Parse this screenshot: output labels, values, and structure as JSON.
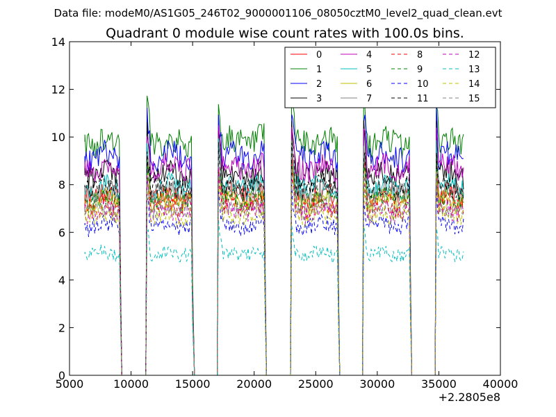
{
  "chart_data": {
    "type": "line",
    "suptitle": "Data file: modeM0/AS1G05_246T02_9000001106_08050cztM0_level2_quad_clean.evt",
    "title": "Quadrant 0 module wise count rates with 100.0s bins.",
    "xlabel": "",
    "ylabel": "",
    "x_offset_label": "+2.2805e8",
    "xlim": [
      5000,
      40000
    ],
    "ylim": [
      0,
      14
    ],
    "x_ticks": [
      5000,
      10000,
      15000,
      20000,
      25000,
      30000,
      35000,
      40000
    ],
    "x_tick_labels": [
      "5000",
      "10000",
      "15000",
      "20000",
      "25000",
      "30000",
      "35000",
      "40000"
    ],
    "y_ticks": [
      0,
      2,
      4,
      6,
      8,
      10,
      12,
      14
    ],
    "y_tick_labels": [
      "0",
      "2",
      "4",
      "6",
      "8",
      "10",
      "12",
      "14"
    ],
    "grid": false,
    "legend_position": "top-right",
    "good_time_intervals": [
      [
        6250,
        9150
      ],
      [
        11300,
        15050
      ],
      [
        17100,
        20900
      ],
      [
        23050,
        26850
      ],
      [
        28900,
        32700
      ],
      [
        34800,
        37000
      ]
    ],
    "series": [
      {
        "name": "0",
        "color": "#ff0000",
        "style": "solid",
        "level": 7.6,
        "spike": 1.6
      },
      {
        "name": "1",
        "color": "#008000",
        "style": "solid",
        "level": 9.8,
        "spike": 2.1
      },
      {
        "name": "2",
        "color": "#0000ff",
        "style": "solid",
        "level": 9.2,
        "spike": 2.0
      },
      {
        "name": "3",
        "color": "#000000",
        "style": "solid",
        "level": 8.4,
        "spike": 1.9
      },
      {
        "name": "4",
        "color": "#bf00bf",
        "style": "solid",
        "level": 8.7,
        "spike": 1.8
      },
      {
        "name": "5",
        "color": "#00bfbf",
        "style": "solid",
        "level": 7.9,
        "spike": 1.7
      },
      {
        "name": "6",
        "color": "#bfbf00",
        "style": "solid",
        "level": 7.3,
        "spike": 1.6
      },
      {
        "name": "7",
        "color": "#808080",
        "style": "solid",
        "level": 7.7,
        "spike": 1.6
      },
      {
        "name": "8",
        "color": "#ff0000",
        "style": "dashed",
        "level": 7.1,
        "spike": 1.5
      },
      {
        "name": "9",
        "color": "#008000",
        "style": "dashed",
        "level": 7.4,
        "spike": 1.6
      },
      {
        "name": "10",
        "color": "#0000ff",
        "style": "dashed",
        "level": 6.3,
        "spike": 1.4
      },
      {
        "name": "11",
        "color": "#000000",
        "style": "dashed",
        "level": 7.9,
        "spike": 1.7
      },
      {
        "name": "12",
        "color": "#bf00bf",
        "style": "dashed",
        "level": 6.9,
        "spike": 1.5
      },
      {
        "name": "13",
        "color": "#00bfbf",
        "style": "dashed",
        "level": 5.1,
        "spike": 1.2
      },
      {
        "name": "14",
        "color": "#bfbf00",
        "style": "dashed",
        "level": 6.7,
        "spike": 1.5
      },
      {
        "name": "15",
        "color": "#808080",
        "style": "dashed",
        "level": 7.0,
        "spike": 1.5
      }
    ]
  }
}
